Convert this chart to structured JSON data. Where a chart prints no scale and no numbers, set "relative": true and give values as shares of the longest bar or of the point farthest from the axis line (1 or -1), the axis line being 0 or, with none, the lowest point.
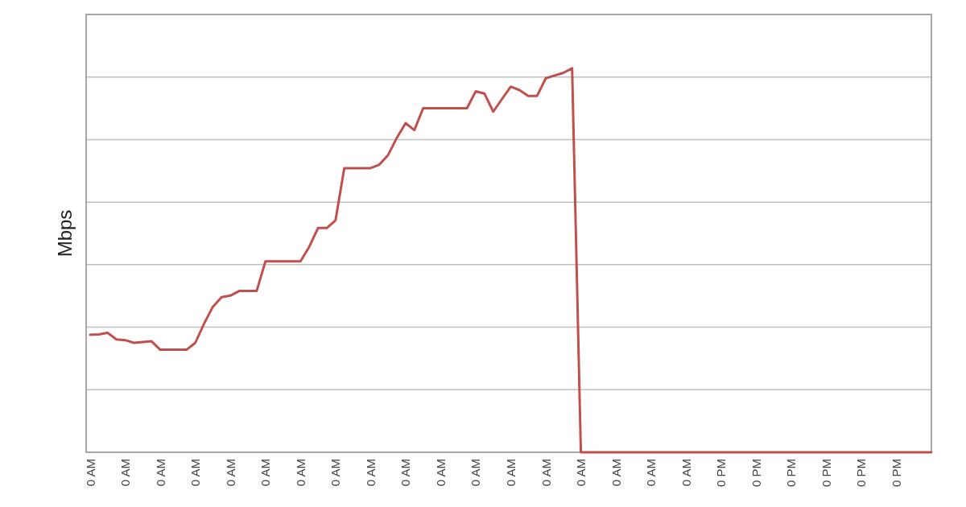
{
  "chart_data": {
    "type": "line",
    "ylabel": "Mbps",
    "relative": true,
    "grid": "y",
    "marker": "none",
    "line_style": "solid",
    "categories": [
      "0 AM",
      null,
      null,
      null,
      "0 AM",
      null,
      null,
      null,
      "0 AM",
      null,
      null,
      null,
      "0 AM",
      null,
      null,
      null,
      "0 AM",
      null,
      null,
      null,
      "0 AM",
      null,
      null,
      null,
      "0 AM",
      null,
      null,
      null,
      "0 AM",
      null,
      null,
      null,
      "0 AM",
      null,
      null,
      null,
      "0 AM",
      null,
      null,
      null,
      "0 AM",
      null,
      null,
      null,
      "0 AM",
      null,
      null,
      null,
      "0 AM",
      null,
      null,
      null,
      "0 AM",
      null,
      null,
      null,
      "0 AM",
      null,
      null,
      null,
      "0 AM",
      null,
      null,
      null,
      "0 AM",
      null,
      null,
      null,
      "0 AM",
      null,
      null,
      null,
      "0 PM",
      null,
      null,
      null,
      "0 PM",
      null,
      null,
      null,
      "0 PM",
      null,
      null,
      null,
      "0 PM",
      null,
      null,
      null,
      "0 PM",
      null,
      null,
      null,
      "0 PM",
      null,
      null,
      null,
      null
    ],
    "series": [
      {
        "color": "#c0504d",
        "values": [
          0.306,
          0.307,
          0.311,
          0.294,
          0.292,
          0.285,
          0.287,
          0.289,
          0.267,
          0.267,
          0.267,
          0.267,
          0.285,
          0.335,
          0.379,
          0.404,
          0.408,
          0.42,
          0.42,
          0.42,
          0.497,
          0.497,
          0.497,
          0.497,
          0.497,
          0.535,
          0.584,
          0.584,
          0.604,
          0.74,
          0.74,
          0.74,
          0.74,
          0.749,
          0.774,
          0.819,
          0.857,
          0.839,
          0.896,
          0.896,
          0.896,
          0.896,
          0.896,
          0.896,
          0.94,
          0.934,
          0.887,
          0.92,
          0.952,
          0.943,
          0.928,
          0.928,
          0.974,
          0.981,
          0.988,
          1,
          0,
          0,
          0,
          0,
          0,
          0,
          0,
          0,
          0,
          0,
          0,
          0,
          0,
          0,
          0,
          0,
          0,
          0,
          0,
          0,
          0,
          0,
          0,
          0,
          0,
          0,
          0,
          0,
          0,
          0,
          0,
          0,
          0,
          0,
          0,
          0,
          0,
          0,
          0,
          0,
          0
        ]
      }
    ]
  }
}
